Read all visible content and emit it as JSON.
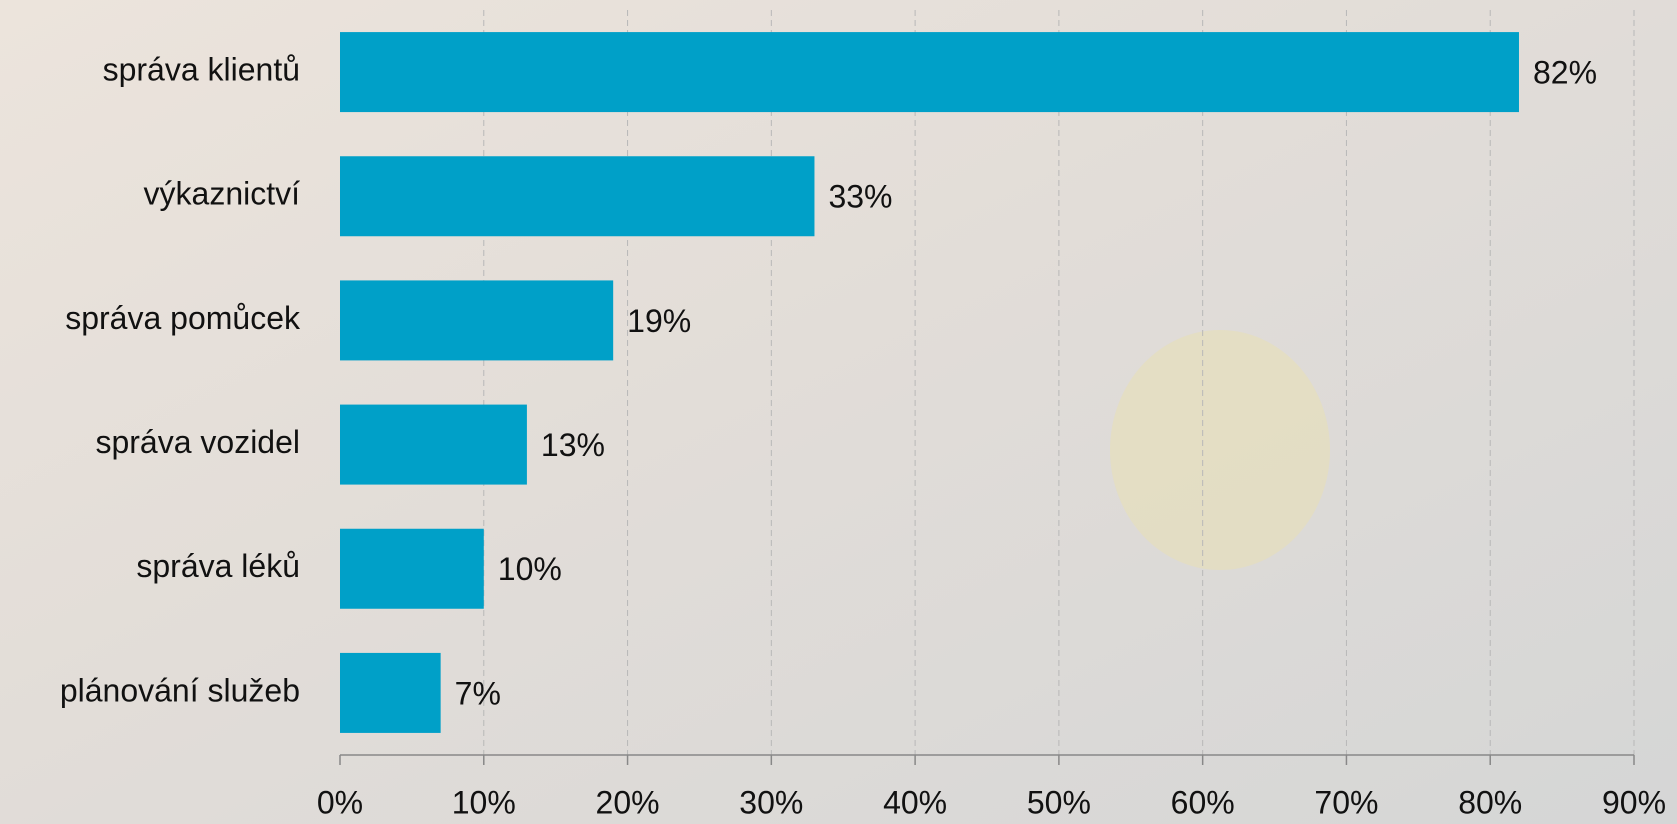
{
  "chart_data": {
    "type": "hbar",
    "categories": [
      "správa klientů",
      "výkaznictví",
      "správa pomůcek",
      "správa vozidel",
      "správa léků",
      "plánování služeb"
    ],
    "values": [
      82,
      33,
      19,
      13,
      10,
      7
    ],
    "value_labels": [
      "82%",
      "33%",
      "19%",
      "13%",
      "10%",
      "7%"
    ],
    "color": "#00a0c8",
    "xlim": [
      0,
      90
    ],
    "xticks": [
      {
        "value": 0,
        "label": "0%"
      },
      {
        "value": 10,
        "label": "10%"
      },
      {
        "value": 20,
        "label": "20%"
      },
      {
        "value": 30,
        "label": "30%"
      },
      {
        "value": 40,
        "label": "40%"
      },
      {
        "value": 50,
        "label": "50%"
      },
      {
        "value": 60,
        "label": "60%"
      },
      {
        "value": 70,
        "label": "70%"
      },
      {
        "value": 80,
        "label": "80%"
      },
      {
        "value": 90,
        "label": "90%"
      }
    ],
    "grid": true
  }
}
